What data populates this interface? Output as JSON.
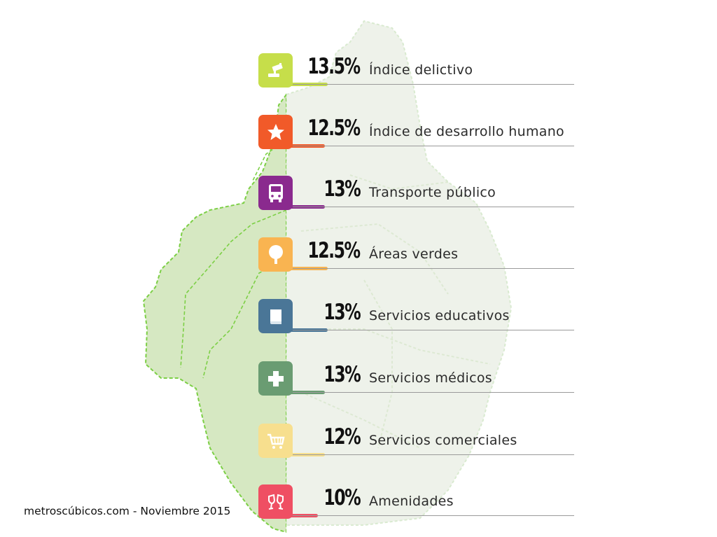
{
  "credit": "metroscúbicos.com - Noviembre 2015",
  "colors": {
    "map_fill_dark": "#d6e8c2",
    "map_fill_light": "#eef2ea",
    "map_border": "#7ccf45",
    "rule": "#9a9a9a"
  },
  "items": [
    {
      "percent": "13.5%",
      "label": "Índice delictivo",
      "icon": "security-camera-icon",
      "color": "#c6de4a",
      "value": 13.5
    },
    {
      "percent": "12.5%",
      "label": "Índice de desarrollo humano",
      "icon": "person-star-icon",
      "color": "#f15a29",
      "value": 12.5
    },
    {
      "percent": "13%",
      "label": "Transporte público",
      "icon": "bus-icon",
      "color": "#8a2a8e",
      "value": 13
    },
    {
      "percent": "12.5%",
      "label": "Áreas verdes",
      "icon": "tree-icon",
      "color": "#f9b451",
      "value": 12.5
    },
    {
      "percent": "13%",
      "label": "Servicios educativos",
      "icon": "book-icon",
      "color": "#4a7697",
      "value": 13
    },
    {
      "percent": "13%",
      "label": "Servicios médicos",
      "icon": "medical-cross-icon",
      "color": "#6a9c72",
      "value": 13
    },
    {
      "percent": "12%",
      "label": "Servicios comerciales",
      "icon": "shopping-cart-icon",
      "color": "#f7df8e",
      "value": 12
    },
    {
      "percent": "10%",
      "label": "Amenidades",
      "icon": "toast-glasses-icon",
      "color": "#ef4f63",
      "value": 10
    }
  ]
}
